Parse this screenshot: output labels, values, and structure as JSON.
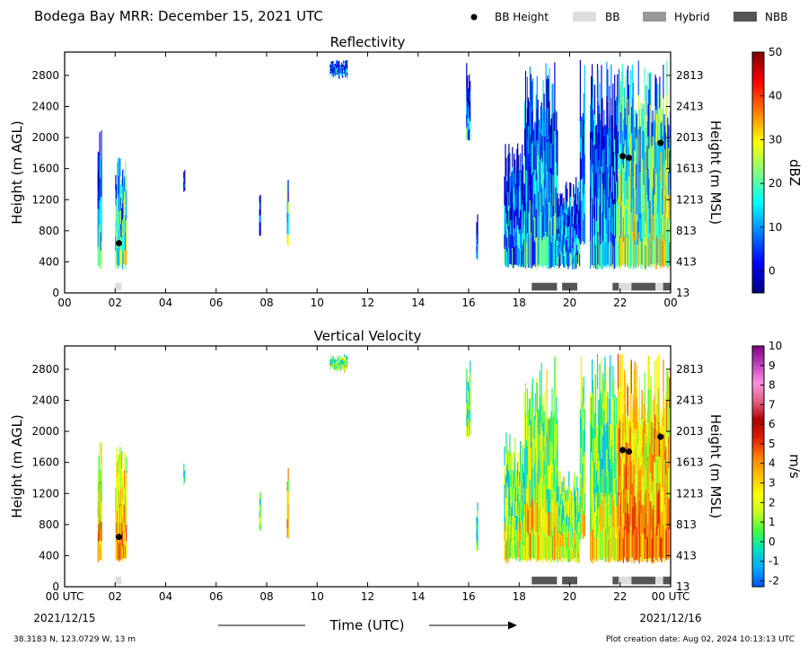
{
  "header": {
    "title": "Bodega Bay MRR:  December 15, 2021 UTC",
    "legend": [
      {
        "label": "BB Height",
        "marker": "dot",
        "color": "#000000"
      },
      {
        "label": "BB",
        "marker": "box",
        "color": "#dddddd"
      },
      {
        "label": "Hybrid",
        "marker": "box",
        "color": "#999999"
      },
      {
        "label": "NBB",
        "marker": "box",
        "color": "#555555"
      }
    ]
  },
  "footer": {
    "location": "38.3183 N, 123.0729 W, 13 m",
    "created": "Plot creation date: Aug 02, 2024 10:13:13 UTC",
    "start_date": "2021/12/15",
    "end_date": "2021/12/16",
    "xlabel": "Time (UTC)"
  },
  "chart_data": [
    {
      "type": "heatmap",
      "title": "Reflectivity",
      "ylabel": "Height (m AGL)",
      "ylabel_right": "Height (m MSL)",
      "xticks": [
        "00",
        "02",
        "04",
        "06",
        "08",
        "10",
        "12",
        "14",
        "16",
        "18",
        "20",
        "22",
        "00"
      ],
      "yticks": [
        "0",
        "400",
        "800",
        "1200",
        "1600",
        "2000",
        "2400",
        "2800"
      ],
      "yticks_right": [
        "13",
        "413",
        "813",
        "1213",
        "1613",
        "2013",
        "2413",
        "2813"
      ],
      "xlim": [
        0,
        24
      ],
      "ylim": [
        0,
        3100
      ],
      "colorbar": {
        "label": "dBZ",
        "ticks": [
          "0",
          "10",
          "20",
          "30",
          "40",
          "50"
        ],
        "range": [
          -5,
          50
        ],
        "colors": [
          "#00007f",
          "#0000ff",
          "#007fff",
          "#00ffff",
          "#7fff7f",
          "#ffff00",
          "#ff7f00",
          "#ff0000",
          "#7f0000"
        ]
      },
      "bb_height": [
        {
          "time": 2.15,
          "height": 640
        },
        {
          "time": 22.1,
          "height": 1760
        },
        {
          "time": 22.35,
          "height": 1740
        },
        {
          "time": 23.6,
          "height": 1930
        }
      ],
      "bands": [
        {
          "type": "BB",
          "start": 2.0,
          "end": 2.25
        },
        {
          "type": "NBB",
          "start": 18.5,
          "end": 19.5
        },
        {
          "type": "NBB",
          "start": 19.7,
          "end": 20.3
        },
        {
          "type": "NBB",
          "start": 21.7,
          "end": 21.95
        },
        {
          "type": "BB",
          "start": 21.95,
          "end": 22.45
        },
        {
          "type": "NBB",
          "start": 22.45,
          "end": 23.4
        },
        {
          "type": "BB",
          "start": 23.4,
          "end": 23.7
        },
        {
          "type": "NBB",
          "start": 23.7,
          "end": 24.0
        }
      ]
    },
    {
      "type": "heatmap",
      "title": "Vertical Velocity",
      "ylabel": "Height (m AGL)",
      "ylabel_right": "Height (m MSL)",
      "xticks": [
        "00 UTC",
        "02",
        "04",
        "06",
        "08",
        "10",
        "12",
        "14",
        "16",
        "18",
        "20",
        "22",
        "00 UTC"
      ],
      "yticks": [
        "0",
        "400",
        "800",
        "1200",
        "1600",
        "2000",
        "2400",
        "2800"
      ],
      "yticks_right": [
        "13",
        "413",
        "813",
        "1213",
        "1613",
        "2013",
        "2413",
        "2813"
      ],
      "xlim": [
        0,
        24
      ],
      "ylim": [
        0,
        3100
      ],
      "colorbar": {
        "label": "m/s",
        "ticks": [
          "-2",
          "-1",
          "0",
          "1",
          "2",
          "3",
          "4",
          "5",
          "6",
          "7",
          "8",
          "9",
          "10"
        ],
        "range": [
          -2.3,
          10
        ],
        "colors": [
          "#0050ff",
          "#00aaff",
          "#00e0c0",
          "#40ff40",
          "#c8ff20",
          "#ffff00",
          "#ffc000",
          "#ff8000",
          "#e02000",
          "#b00000",
          "#e06080",
          "#ff90e0",
          "#c040c0",
          "#800080"
        ]
      },
      "bb_height": [
        {
          "time": 2.15,
          "height": 640
        },
        {
          "time": 22.1,
          "height": 1760
        },
        {
          "time": 22.35,
          "height": 1740
        },
        {
          "time": 23.6,
          "height": 1930
        }
      ],
      "bands": [
        {
          "type": "BB",
          "start": 2.0,
          "end": 2.25
        },
        {
          "type": "NBB",
          "start": 18.5,
          "end": 19.5
        },
        {
          "type": "NBB",
          "start": 19.7,
          "end": 20.3
        },
        {
          "type": "NBB",
          "start": 21.7,
          "end": 21.95
        },
        {
          "type": "BB",
          "start": 21.95,
          "end": 22.45
        },
        {
          "type": "NBB",
          "start": 22.45,
          "end": 23.4
        },
        {
          "type": "BB",
          "start": 23.4,
          "end": 23.7
        },
        {
          "type": "NBB",
          "start": 23.7,
          "end": 24.0
        }
      ]
    }
  ]
}
